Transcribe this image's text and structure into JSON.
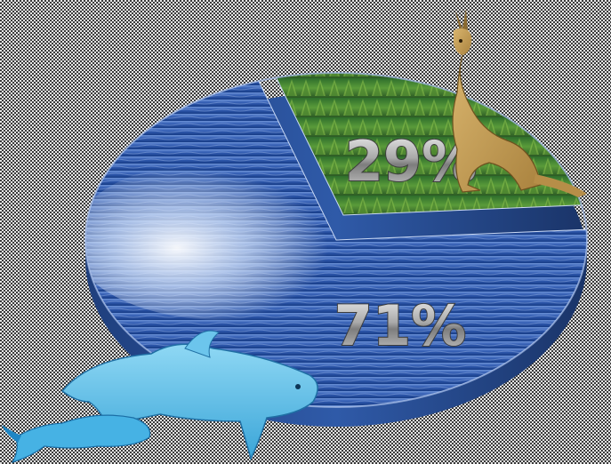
{
  "chart_data": {
    "type": "pie",
    "style": "3d-photo-textured",
    "slices": [
      {
        "label": "71%",
        "value": 71,
        "texture": "ocean-wave",
        "color": "#3f6fc6"
      },
      {
        "label": "29%",
        "value": 29,
        "texture": "forest",
        "color": "#3f8a3a"
      }
    ],
    "title": "",
    "legend": "none",
    "decorations": [
      "kangaroo-illustration",
      "dolphin-illustration"
    ]
  }
}
